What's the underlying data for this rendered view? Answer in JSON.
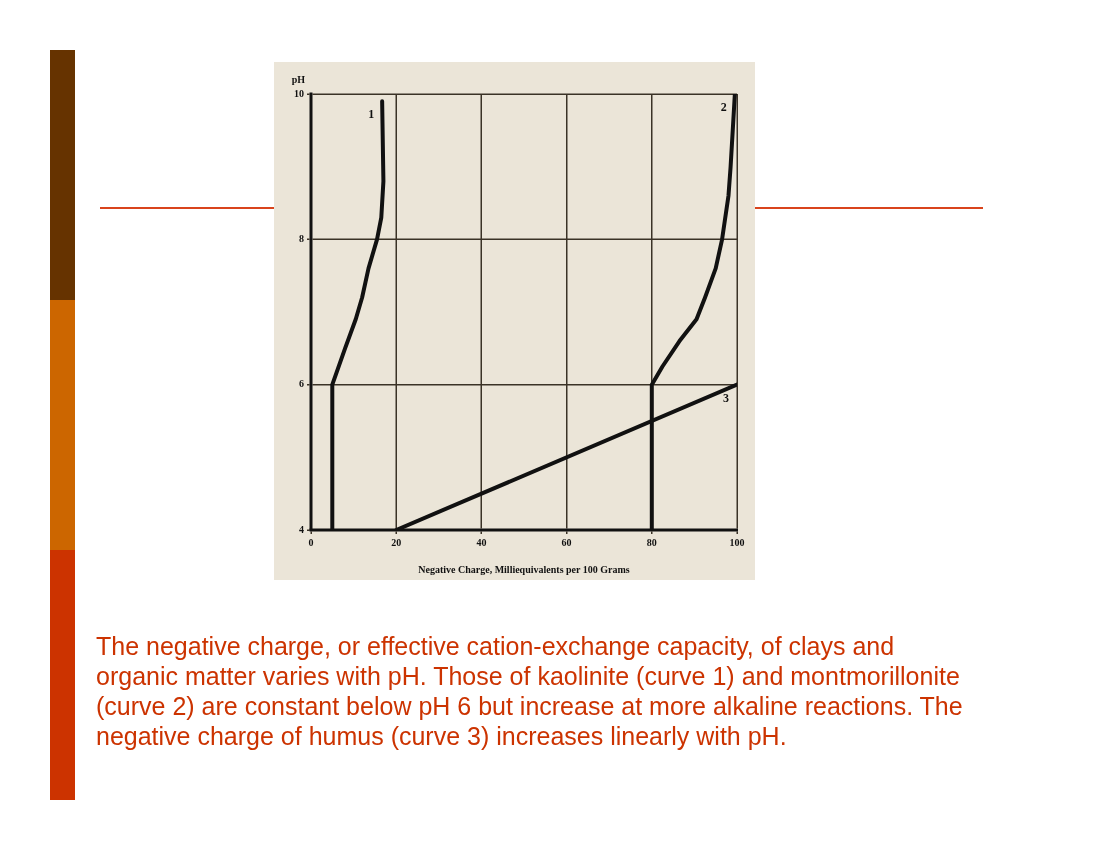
{
  "chart_data": {
    "type": "line",
    "xlabel": "Negative Charge, Milliequivalents per 100 Grams",
    "ylabel": "pH",
    "series": [
      {
        "name": "1",
        "color": "#111111",
        "x": [
          5,
          5,
          8,
          10.5,
          12,
          13.5,
          15.5,
          16.5,
          17,
          16.7
        ],
        "values": [
          4,
          6,
          6.5,
          6.9,
          7.2,
          7.6,
          8,
          8.3,
          8.8,
          9.9
        ]
      },
      {
        "name": "2",
        "color": "#111111",
        "x": [
          80,
          80,
          82.5,
          86.5,
          90.5,
          92.5,
          95,
          96.5,
          98,
          98.5,
          99,
          99.5
        ],
        "values": [
          4,
          6,
          6.25,
          6.6,
          6.9,
          7.2,
          7.6,
          8,
          8.6,
          9,
          9.5,
          10
        ]
      },
      {
        "name": "3",
        "color": "#111111",
        "x": [
          20,
          100
        ],
        "values": [
          4,
          6
        ]
      }
    ],
    "xlim": [
      0,
      100
    ],
    "xticks": [
      0,
      20,
      40,
      60,
      80,
      100
    ],
    "ylim": [
      4,
      10
    ],
    "yticks": [
      4,
      6,
      8,
      10
    ],
    "grid": true,
    "marker": "none",
    "line_style": "solid",
    "annotations": [
      "The negative charge, or effective cation-exchange capacity, of clays and organic matter varies with pH. Those of kaolinite (curve 1) and montmorillonite (curve 2) are constant below pH 6 but increase at more alkaline reactions. The negative charge of humus (curve 3) increases linearly with pH."
    ]
  }
}
